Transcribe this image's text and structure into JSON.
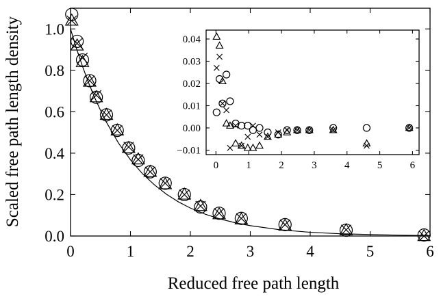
{
  "chart_data": [
    {
      "type": "scatter",
      "title": "",
      "xlabel": "Reduced free path length",
      "ylabel": "Scaled free path length density",
      "xlim": [
        0,
        6
      ],
      "ylim": [
        0,
        1.1
      ],
      "xticks": [
        0,
        1,
        2,
        3,
        4,
        5,
        6
      ],
      "xtick_labels": [
        "0",
        "1",
        "2",
        "3",
        "4",
        "5",
        "6"
      ],
      "yticks": [
        0.0,
        0.2,
        0.4,
        0.6,
        0.8,
        1.0
      ],
      "ytick_labels": [
        "0.0",
        "0.2",
        "0.4",
        "0.6",
        "0.8",
        "1.0"
      ],
      "grid": false,
      "curve": {
        "name": "",
        "function": "exp(-x)",
        "x": [
          0.0,
          0.1,
          0.2,
          0.3,
          0.4,
          0.5,
          0.6,
          0.8,
          1.0,
          1.2,
          1.4,
          1.6,
          1.8,
          2.0,
          2.25,
          2.5,
          2.75,
          3.0,
          3.5,
          4.0,
          4.5,
          5.0,
          5.5,
          6.0
        ],
        "y": [
          1.0,
          0.905,
          0.819,
          0.741,
          0.67,
          0.607,
          0.549,
          0.449,
          0.368,
          0.301,
          0.247,
          0.202,
          0.165,
          0.135,
          0.105,
          0.082,
          0.064,
          0.05,
          0.03,
          0.018,
          0.011,
          0.007,
          0.004,
          0.002
        ]
      },
      "series": [
        {
          "name": "",
          "marker": "circle",
          "x": [
            0.02,
            0.11,
            0.2,
            0.32,
            0.43,
            0.6,
            0.78,
            0.97,
            1.13,
            1.33,
            1.58,
            1.9,
            2.17,
            2.48,
            2.85,
            3.58,
            4.6,
            5.9
          ],
          "y": [
            1.07,
            0.94,
            0.85,
            0.75,
            0.67,
            0.585,
            0.51,
            0.425,
            0.365,
            0.31,
            0.255,
            0.2,
            0.14,
            0.11,
            0.085,
            0.055,
            0.028,
            0.005
          ]
        },
        {
          "name": "",
          "marker": "triangle",
          "x": [
            0.02,
            0.11,
            0.2,
            0.32,
            0.43,
            0.6,
            0.78,
            0.97,
            1.13,
            1.33,
            1.58,
            1.9,
            2.17,
            2.48,
            2.85,
            3.58,
            4.6,
            5.9
          ],
          "y": [
            1.04,
            0.92,
            0.84,
            0.745,
            0.67,
            0.585,
            0.51,
            0.425,
            0.37,
            0.31,
            0.25,
            0.2,
            0.145,
            0.105,
            0.08,
            0.05,
            0.028,
            0.0
          ]
        },
        {
          "name": "",
          "marker": "cross",
          "x": [
            0.02,
            0.11,
            0.2,
            0.32,
            0.43,
            0.6,
            0.78,
            0.97,
            1.13,
            1.33,
            1.58,
            1.9,
            2.17,
            2.48,
            2.85,
            3.58,
            4.6,
            5.9
          ],
          "y": [
            1.04,
            0.93,
            0.86,
            0.75,
            0.68,
            0.585,
            0.51,
            0.43,
            0.37,
            0.31,
            0.255,
            0.2,
            0.145,
            0.11,
            0.085,
            0.055,
            0.03,
            0.0
          ]
        }
      ]
    },
    {
      "type": "scatter",
      "title": "",
      "xlabel": "",
      "ylabel": "",
      "xlim": [
        -0.3,
        6.2
      ],
      "ylim": [
        -0.012,
        0.044
      ],
      "xticks": [
        0,
        1,
        2,
        3,
        4,
        5,
        6
      ],
      "xtick_labels": [
        "0",
        "1",
        "2",
        "3",
        "4",
        "5",
        "6"
      ],
      "yticks": [
        -0.01,
        0.0,
        0.01,
        0.02,
        0.03,
        0.04
      ],
      "ytick_labels": [
        "−0.01",
        "0.00",
        "0.01",
        "0.02",
        "0.03",
        "0.04"
      ],
      "grid": false,
      "series": [
        {
          "name": "",
          "marker": "circle",
          "x": [
            0.02,
            0.11,
            0.2,
            0.32,
            0.43,
            0.6,
            0.78,
            0.97,
            1.13,
            1.33,
            1.58,
            1.9,
            2.17,
            2.48,
            2.85,
            3.58,
            4.6,
            5.9
          ],
          "y": [
            0.007,
            0.022,
            0.011,
            0.024,
            0.012,
            0.002,
            0.001,
            0.001,
            -0.001,
            0.0,
            -0.002,
            -0.003,
            -0.001,
            -0.001,
            -0.001,
            0.0,
            0.0,
            0.0
          ]
        },
        {
          "name": "",
          "marker": "triangle",
          "x": [
            0.02,
            0.11,
            0.2,
            0.32,
            0.43,
            0.6,
            0.78,
            0.97,
            1.13,
            1.33,
            1.58,
            1.9,
            2.17,
            2.48,
            2.85,
            3.58,
            4.6,
            5.9
          ],
          "y": [
            0.041,
            0.037,
            0.021,
            0.002,
            0.001,
            -0.007,
            -0.008,
            -0.009,
            -0.009,
            -0.008,
            -0.004,
            -0.003,
            -0.002,
            -0.001,
            -0.001,
            -0.001,
            -0.007,
            0.0
          ]
        },
        {
          "name": "",
          "marker": "cross",
          "x": [
            0.02,
            0.11,
            0.2,
            0.32,
            0.43,
            0.6,
            0.78,
            0.97,
            1.13,
            1.33,
            1.58,
            1.9,
            2.17,
            2.48,
            2.85,
            3.58,
            4.6,
            5.9
          ],
          "y": [
            0.027,
            0.032,
            0.011,
            0.008,
            -0.009,
            0.001,
            -0.008,
            -0.004,
            0.001,
            -0.003,
            -0.004,
            -0.002,
            -0.001,
            -0.001,
            -0.001,
            -0.001,
            -0.008,
            0.0
          ]
        }
      ]
    }
  ]
}
